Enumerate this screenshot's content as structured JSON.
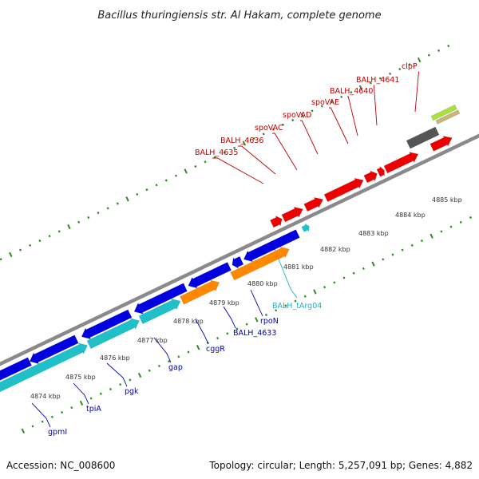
{
  "header": {
    "title": "Bacillus thuringiensis str. Al Hakam, complete genome"
  },
  "footer": {
    "accession": "Accession: NC_008600",
    "summary": "Topology: circular; Length: 5,257,091 bp; Genes: 4,882"
  },
  "colors": {
    "backbone": "#8a8a8a",
    "tick": "#2e8b20",
    "forward_label": "#c00000",
    "reverse_label": "#0000b0",
    "rna_label": "#20b0d0",
    "gene_red": "#ee0000",
    "gene_blue": "#0000e0",
    "gene_teal": "#20c0c8",
    "gene_orange": "#ff8800",
    "gene_gray": "#555555",
    "gene_lime": "#a8e040",
    "gene_tan": "#c8b878"
  },
  "axis": {
    "tick_labels": [
      "4874 kbp",
      "4875 kbp",
      "4876 kbp",
      "4877 kbp",
      "4878 kbp",
      "4879 kbp",
      "4880 kbp",
      "4881 kbp",
      "4882 kbp",
      "4883 kbp",
      "4884 kbp",
      "4885 kbp"
    ]
  },
  "forward_labels": [
    "BALH_4635",
    "BALH_4636",
    "spoVAC",
    "spoVAD",
    "spoVAE",
    "BALH_4640",
    "BALH_4641",
    "clpP"
  ],
  "reverse_labels": [
    "gpmI",
    "tpiA",
    "pgk",
    "gap",
    "cggR",
    "BALH_4633",
    "rpoN"
  ],
  "rna_labels": [
    "BALH_tArg04"
  ]
}
